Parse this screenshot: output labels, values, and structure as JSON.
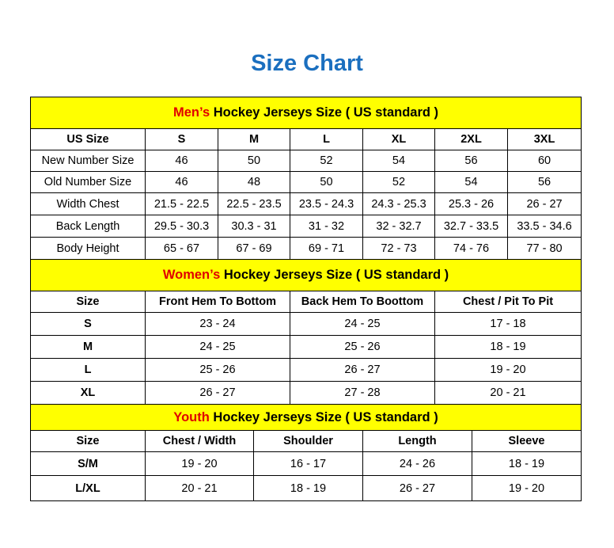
{
  "title": "Size Chart",
  "men": {
    "prefix": "Men’s",
    "rest": " Hockey Jerseys Size ( US standard )",
    "columns": [
      "US Size",
      "S",
      "M",
      "L",
      "XL",
      "2XL",
      "3XL"
    ],
    "rows": [
      [
        "New Number Size",
        "46",
        "50",
        "52",
        "54",
        "56",
        "60"
      ],
      [
        "Old Number Size",
        "46",
        "48",
        "50",
        "52",
        "54",
        "56"
      ],
      [
        "Width Chest",
        "21.5 - 22.5",
        "22.5 - 23.5",
        "23.5 - 24.3",
        "24.3 - 25.3",
        "25.3 - 26",
        "26 - 27"
      ],
      [
        "Back Length",
        "29.5 - 30.3",
        "30.3 - 31",
        "31 - 32",
        "32 - 32.7",
        "32.7 - 33.5",
        "33.5 - 34.6"
      ],
      [
        "Body Height",
        "65 - 67",
        "67 - 69",
        "69 - 71",
        "72 - 73",
        "74 - 76",
        "77 - 80"
      ]
    ]
  },
  "women": {
    "prefix": "Women’s",
    "rest": " Hockey Jerseys Size ( US standard )",
    "columns": [
      "Size",
      "Front Hem To Bottom",
      "Back Hem To Boottom",
      "Chest / Pit To Pit"
    ],
    "rows": [
      [
        "S",
        "23 - 24",
        "24 - 25",
        "17 - 18"
      ],
      [
        "M",
        "24 - 25",
        "25 - 26",
        "18 - 19"
      ],
      [
        "L",
        "25 - 26",
        "26 - 27",
        "19 - 20"
      ],
      [
        "XL",
        "26 - 27",
        "27 - 28",
        "20 - 21"
      ]
    ]
  },
  "youth": {
    "prefix": "Youth",
    "rest": " Hockey Jerseys Size ( US standard )",
    "columns": [
      "Size",
      "Chest / Width",
      "Shoulder",
      "Length",
      "Sleeve"
    ],
    "rows": [
      [
        "S/M",
        "19 - 20",
        "16 - 17",
        "24 - 26",
        "18 - 19"
      ],
      [
        "L/XL",
        "20 - 21",
        "18 - 19",
        "26 - 27",
        "19 - 20"
      ]
    ]
  }
}
